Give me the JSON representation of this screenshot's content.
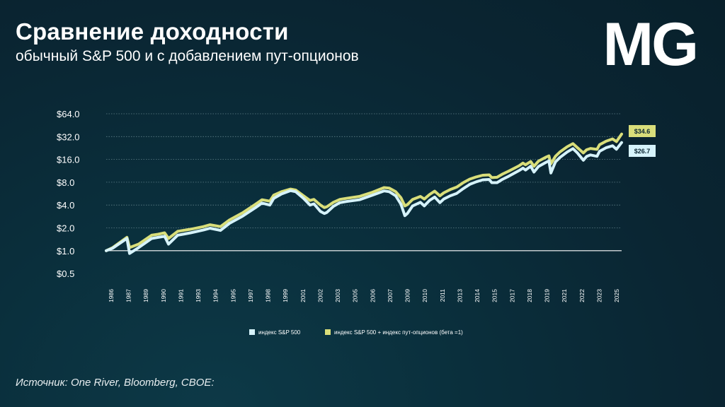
{
  "header": {
    "title": "Сравнение доходности",
    "subtitle": "обычный S&P 500 и с добавлением пут-опционов",
    "logo_text": "MG"
  },
  "footer": {
    "source": "Источник: One River, Bloomberg, CBOE:"
  },
  "colors": {
    "background": "#0a2532",
    "sp500": "#d6f3fb",
    "sp500_puts": "#d9de7a",
    "gridline": "#5f7f88"
  },
  "chart_data": {
    "type": "line",
    "y_scale": "log2",
    "ylim": [
      0.5,
      64
    ],
    "y_ticks": [
      {
        "value": 64,
        "label": "$64.0"
      },
      {
        "value": 32,
        "label": "$32.0"
      },
      {
        "value": 16,
        "label": "$16.0"
      },
      {
        "value": 8,
        "label": "$8.0"
      },
      {
        "value": 4,
        "label": "$4.0"
      },
      {
        "value": 2,
        "label": "$2.0"
      },
      {
        "value": 1,
        "label": "$1.0"
      },
      {
        "value": 0.5,
        "label": "$0.5"
      }
    ],
    "x_tick_labels": [
      "1986",
      "1987",
      "1989",
      "1990",
      "1991",
      "1993",
      "1994",
      "1995",
      "1997",
      "1998",
      "1999",
      "2001",
      "2002",
      "2003",
      "2005",
      "2006",
      "2007",
      "2009",
      "2010",
      "2011",
      "2013",
      "2014",
      "2015",
      "2017",
      "2018",
      "2019",
      "2021",
      "2022",
      "2023",
      "2025"
    ],
    "grid": true,
    "legend_position": "bottom",
    "series": [
      {
        "name": "индекс S&P 500",
        "color": "#d6f3fb",
        "end_label": "$26.7",
        "points": [
          [
            1986.0,
            1.0
          ],
          [
            1986.5,
            1.08
          ],
          [
            1987.6,
            1.45
          ],
          [
            1987.8,
            0.92
          ],
          [
            1988.5,
            1.1
          ],
          [
            1989.5,
            1.45
          ],
          [
            1990.0,
            1.5
          ],
          [
            1990.5,
            1.55
          ],
          [
            1990.8,
            1.22
          ],
          [
            1991.5,
            1.6
          ],
          [
            1992.5,
            1.72
          ],
          [
            1993.5,
            1.88
          ],
          [
            1994.0,
            1.98
          ],
          [
            1994.8,
            1.85
          ],
          [
            1995.5,
            2.3
          ],
          [
            1996.5,
            2.85
          ],
          [
            1997.5,
            3.7
          ],
          [
            1998.0,
            4.25
          ],
          [
            1998.6,
            4.0
          ],
          [
            1998.9,
            4.9
          ],
          [
            1999.5,
            5.6
          ],
          [
            2000.2,
            6.2
          ],
          [
            2000.6,
            6.0
          ],
          [
            2001.2,
            4.9
          ],
          [
            2001.7,
            4.0
          ],
          [
            2002.0,
            4.15
          ],
          [
            2002.5,
            3.3
          ],
          [
            2002.8,
            3.1
          ],
          [
            2003.0,
            3.2
          ],
          [
            2003.5,
            3.85
          ],
          [
            2004.0,
            4.3
          ],
          [
            2004.5,
            4.45
          ],
          [
            2005.5,
            4.7
          ],
          [
            2006.5,
            5.4
          ],
          [
            2007.4,
            6.15
          ],
          [
            2007.8,
            6.0
          ],
          [
            2008.3,
            5.3
          ],
          [
            2008.7,
            4.1
          ],
          [
            2009.0,
            2.9
          ],
          [
            2009.2,
            3.1
          ],
          [
            2009.6,
            3.9
          ],
          [
            2010.2,
            4.35
          ],
          [
            2010.5,
            3.9
          ],
          [
            2010.9,
            4.6
          ],
          [
            2011.3,
            5.1
          ],
          [
            2011.7,
            4.3
          ],
          [
            2012.0,
            4.8
          ],
          [
            2012.5,
            5.3
          ],
          [
            2013.0,
            5.7
          ],
          [
            2013.5,
            6.6
          ],
          [
            2014.0,
            7.5
          ],
          [
            2014.5,
            8.1
          ],
          [
            2015.0,
            8.6
          ],
          [
            2015.5,
            8.7
          ],
          [
            2015.7,
            7.9
          ],
          [
            2016.1,
            7.9
          ],
          [
            2016.5,
            8.7
          ],
          [
            2017.0,
            9.6
          ],
          [
            2017.8,
            11.4
          ],
          [
            2018.1,
            12.3
          ],
          [
            2018.3,
            11.6
          ],
          [
            2018.7,
            13.0
          ],
          [
            2018.95,
            10.9
          ],
          [
            2019.3,
            12.9
          ],
          [
            2019.9,
            14.7
          ],
          [
            2020.1,
            15.3
          ],
          [
            2020.25,
            10.6
          ],
          [
            2020.6,
            14.8
          ],
          [
            2020.95,
            17.0
          ],
          [
            2021.5,
            20.0
          ],
          [
            2021.95,
            22.2
          ],
          [
            2022.3,
            19.4
          ],
          [
            2022.75,
            15.6
          ],
          [
            2023.0,
            17.5
          ],
          [
            2023.3,
            18.3
          ],
          [
            2023.8,
            17.6
          ],
          [
            2024.0,
            20.5
          ],
          [
            2024.5,
            22.8
          ],
          [
            2025.0,
            24.2
          ],
          [
            2025.3,
            21.8
          ],
          [
            2025.7,
            26.7
          ]
        ]
      },
      {
        "name": "индекс  S&P 500 + индекс пут-опционов (бета =1)",
        "color": "#d9de7a",
        "end_label": "$34.6",
        "points": [
          [
            1986.0,
            1.0
          ],
          [
            1986.5,
            1.1
          ],
          [
            1987.6,
            1.5
          ],
          [
            1987.8,
            1.1
          ],
          [
            1988.5,
            1.22
          ],
          [
            1989.5,
            1.6
          ],
          [
            1990.0,
            1.65
          ],
          [
            1990.5,
            1.72
          ],
          [
            1990.8,
            1.45
          ],
          [
            1991.5,
            1.8
          ],
          [
            1992.5,
            1.92
          ],
          [
            1993.5,
            2.08
          ],
          [
            1994.0,
            2.2
          ],
          [
            1994.8,
            2.08
          ],
          [
            1995.5,
            2.55
          ],
          [
            1996.5,
            3.15
          ],
          [
            1997.5,
            4.1
          ],
          [
            1998.0,
            4.7
          ],
          [
            1998.6,
            4.5
          ],
          [
            1998.9,
            5.4
          ],
          [
            1999.5,
            6.0
          ],
          [
            2000.2,
            6.5
          ],
          [
            2000.6,
            6.3
          ],
          [
            2001.2,
            5.3
          ],
          [
            2001.7,
            4.6
          ],
          [
            2002.0,
            4.75
          ],
          [
            2002.5,
            4.0
          ],
          [
            2002.8,
            3.7
          ],
          [
            2003.0,
            3.8
          ],
          [
            2003.5,
            4.35
          ],
          [
            2004.0,
            4.75
          ],
          [
            2004.5,
            4.9
          ],
          [
            2005.5,
            5.2
          ],
          [
            2006.5,
            5.9
          ],
          [
            2007.4,
            6.8
          ],
          [
            2007.8,
            6.7
          ],
          [
            2008.3,
            6.0
          ],
          [
            2008.7,
            5.0
          ],
          [
            2009.0,
            3.9
          ],
          [
            2009.2,
            4.05
          ],
          [
            2009.6,
            4.75
          ],
          [
            2010.2,
            5.2
          ],
          [
            2010.5,
            4.8
          ],
          [
            2010.9,
            5.5
          ],
          [
            2011.3,
            6.1
          ],
          [
            2011.7,
            5.3
          ],
          [
            2012.0,
            5.8
          ],
          [
            2012.5,
            6.4
          ],
          [
            2013.0,
            6.9
          ],
          [
            2013.5,
            7.9
          ],
          [
            2014.0,
            8.8
          ],
          [
            2014.5,
            9.4
          ],
          [
            2015.0,
            9.9
          ],
          [
            2015.5,
            10.0
          ],
          [
            2015.7,
            9.2
          ],
          [
            2016.1,
            9.3
          ],
          [
            2016.5,
            10.2
          ],
          [
            2017.0,
            11.2
          ],
          [
            2017.8,
            13.2
          ],
          [
            2018.1,
            14.3
          ],
          [
            2018.3,
            13.6
          ],
          [
            2018.7,
            15.0
          ],
          [
            2018.95,
            13.0
          ],
          [
            2019.3,
            15.2
          ],
          [
            2019.9,
            17.2
          ],
          [
            2020.1,
            17.8
          ],
          [
            2020.25,
            14.0
          ],
          [
            2020.6,
            17.6
          ],
          [
            2020.95,
            20.1
          ],
          [
            2021.5,
            23.5
          ],
          [
            2021.95,
            25.8
          ],
          [
            2022.3,
            22.8
          ],
          [
            2022.75,
            19.5
          ],
          [
            2023.0,
            21.4
          ],
          [
            2023.3,
            22.3
          ],
          [
            2023.8,
            21.7
          ],
          [
            2024.0,
            25.0
          ],
          [
            2024.5,
            27.8
          ],
          [
            2025.0,
            29.8
          ],
          [
            2025.3,
            27.5
          ],
          [
            2025.7,
            34.6
          ]
        ]
      }
    ]
  }
}
